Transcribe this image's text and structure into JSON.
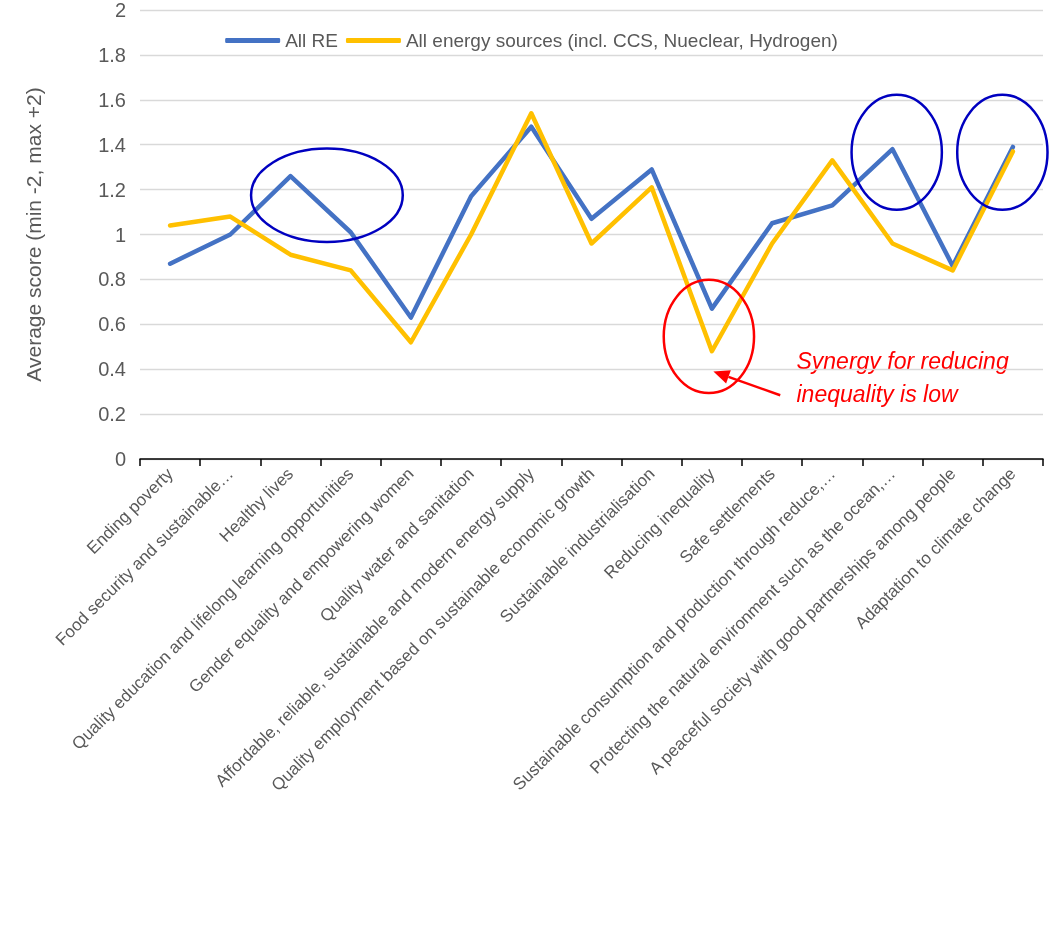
{
  "chart_data": {
    "type": "line",
    "ylabel": "Average score (min -2, max +2)",
    "categories": [
      "Ending poverty",
      "Food security and sustainable…",
      "Healthy lives",
      "Quality education and lifelong learning opportunities",
      "Gender equality and empowering women",
      "Quality water and sanitation",
      "Affordable, reliable, sustainable and modern energy supply",
      "Quality employment based on sustainable economic growth",
      "Sustainable industrialisation",
      "Reducing inequality",
      "Safe settlements",
      "Sustainable consumption and production through reduce,…",
      "Protecting the natural environment such as the ocean,…",
      "A peaceful society with good partnerships among people",
      "Adaptation to climate change"
    ],
    "series": [
      {
        "name": "All RE",
        "color": "#4472c4",
        "values": [
          0.87,
          1.0,
          1.26,
          1.01,
          0.63,
          1.17,
          1.48,
          1.07,
          1.29,
          0.67,
          1.05,
          1.13,
          1.38,
          0.86,
          1.39
        ]
      },
      {
        "name": "All energy sources (incl. CCS, Nueclear, Hydrogen)",
        "color": "#ffc000",
        "values": [
          1.04,
          1.08,
          0.91,
          0.84,
          0.52,
          1.0,
          1.54,
          0.96,
          1.21,
          0.48,
          0.96,
          1.33,
          0.96,
          0.84,
          1.37
        ]
      }
    ],
    "ylim": [
      0,
      2
    ],
    "yticks": [
      0,
      0.2,
      0.4,
      0.6,
      0.8,
      1,
      1.2,
      1.4,
      1.6,
      1.8,
      2
    ],
    "grid": "y",
    "legend": "top",
    "marker": "none",
    "line_style": "solid",
    "annotations": [
      "Synergy for reducing inequality is low"
    ]
  }
}
